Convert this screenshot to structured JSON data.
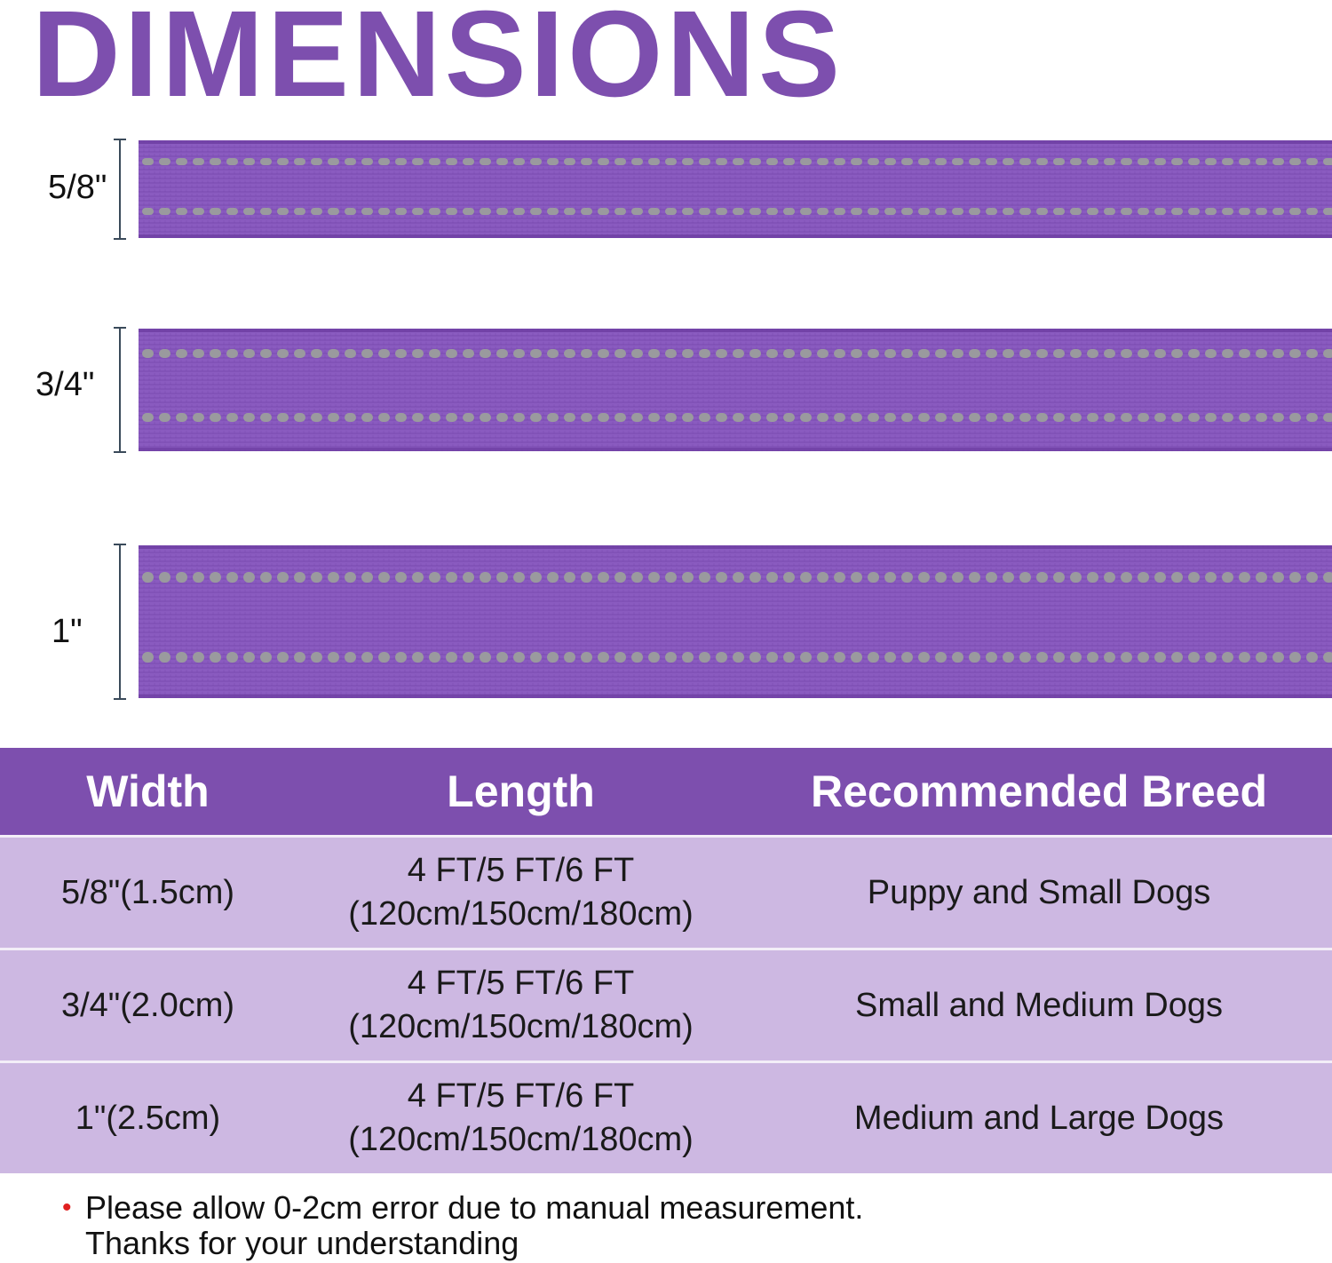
{
  "title": "DIMENSIONS",
  "colors": {
    "brand_purple": "#7d4fae",
    "strap_purple": "#8a5bc0",
    "strap_dark": "#6e3fa3",
    "stitch_gray": "#9a9a9e",
    "row_lavender": "#cdb8e2",
    "bullet_red": "#e02020"
  },
  "straps": [
    {
      "label": "5/8\""
    },
    {
      "label": "3/4\""
    },
    {
      "label": "1\""
    }
  ],
  "table": {
    "headers": [
      "Width",
      "Length",
      "Recommended Breed"
    ],
    "rows": [
      {
        "width": "5/8\"(1.5cm)",
        "length_ft": "4 FT/5 FT/6 FT",
        "length_cm": "(120cm/150cm/180cm)",
        "breed": "Puppy and Small Dogs"
      },
      {
        "width": "3/4\"(2.0cm)",
        "length_ft": "4 FT/5 FT/6 FT",
        "length_cm": "(120cm/150cm/180cm)",
        "breed": "Small and Medium Dogs"
      },
      {
        "width": "1\"(2.5cm)",
        "length_ft": "4 FT/5 FT/6 FT",
        "length_cm": "(120cm/150cm/180cm)",
        "breed": "Medium and Large Dogs"
      }
    ]
  },
  "note": {
    "bullet": "•",
    "line1": "Please allow 0-2cm error due to manual measurement.",
    "line2": "Thanks for your understanding"
  }
}
